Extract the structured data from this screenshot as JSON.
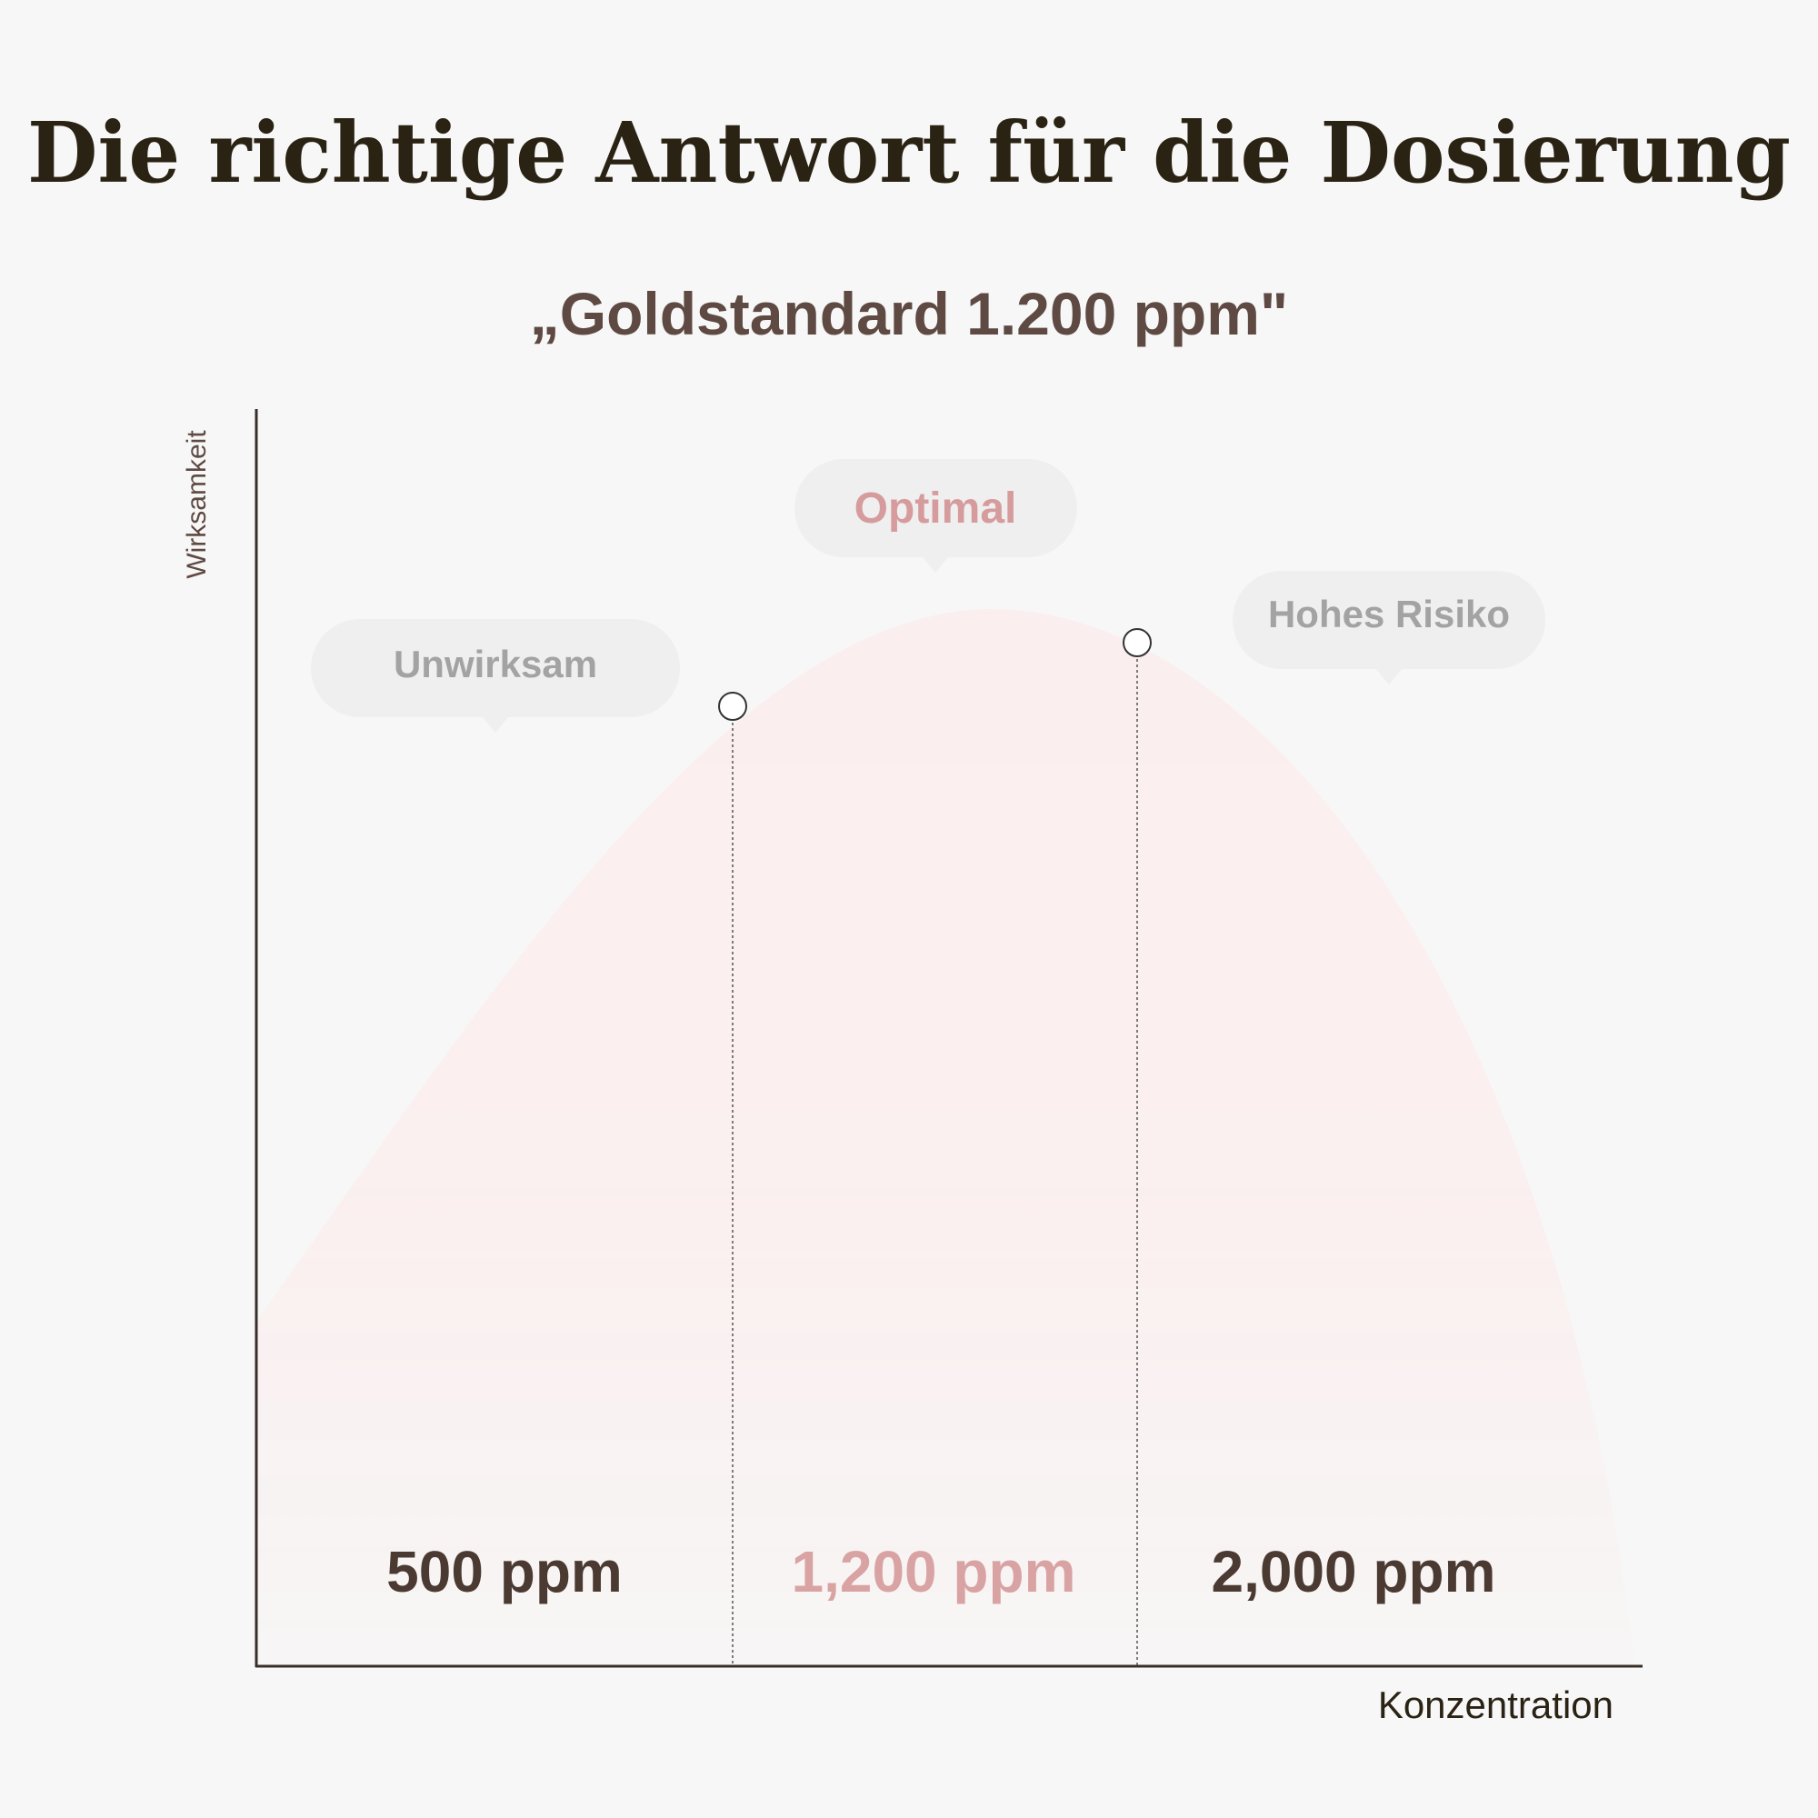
{
  "title": "Die richtige Antwort für die Dosierung",
  "subtitle": "„Goldstandard 1.200 ppm\"",
  "y_axis_label": "Wirksamkeit",
  "x_axis_label": "Konzentration",
  "zones": [
    {
      "label": "Unwirksam",
      "value_label": "500 ppm"
    },
    {
      "label": "Optimal",
      "value_label": "1,200 ppm"
    },
    {
      "label": "Hohes Risiko",
      "value_label": "2,000 ppm"
    }
  ]
}
